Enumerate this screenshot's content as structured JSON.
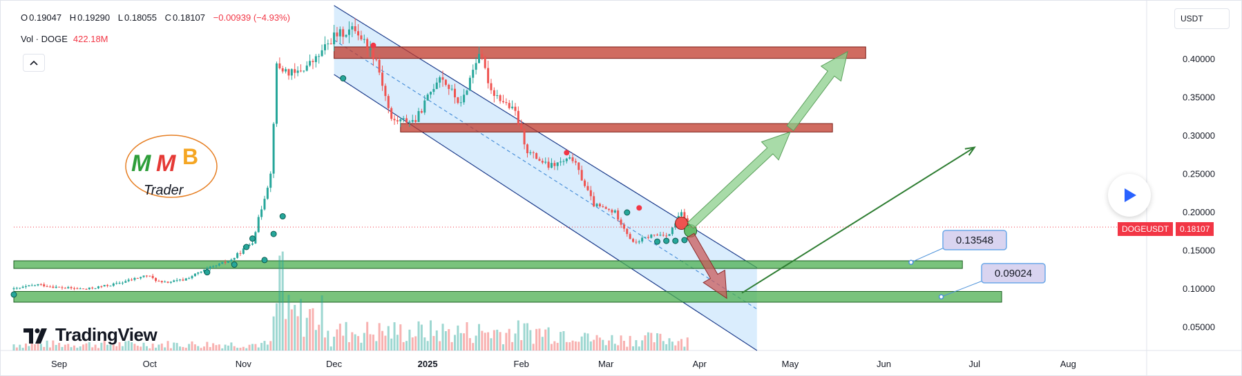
{
  "legend": {
    "open_label": "O",
    "open": "0.19047",
    "high_label": "H",
    "high": "0.19290",
    "low_label": "L",
    "low": "0.18055",
    "close_label": "C",
    "close": "0.18107",
    "change": "−0.00939 (−4.93%)"
  },
  "volume": {
    "label": "Vol · DOGE",
    "value": "422.18M"
  },
  "collapse_icon": "chevron-up-icon",
  "currency": "USDT",
  "symbol_tag": "DOGEUSDT",
  "last_price": "0.18107",
  "watermark": "TradingView",
  "logo": {
    "letters": [
      "M",
      "M",
      "B"
    ],
    "word": "Trader"
  },
  "callouts": [
    "0.13548",
    "0.09024"
  ],
  "colors": {
    "up": "#26a69a",
    "down": "#ef5350",
    "channel": "#bbdefb",
    "resistance": "#c0392b",
    "support": "#4caf50",
    "last_price": "#f23645"
  },
  "chart_data": {
    "type": "candlestick",
    "symbol": "DOGEUSDT",
    "y_ticks": [
      0.05,
      0.1,
      0.15,
      0.2,
      0.25,
      0.3,
      0.35,
      0.4
    ],
    "y_tick_labels": [
      "0.05000",
      "0.10000",
      "0.15000",
      "0.20000",
      "0.25000",
      "0.30000",
      "0.35000",
      "0.40000"
    ],
    "ylim": [
      0.02,
      0.47
    ],
    "x_labels": [
      "Sep",
      "Oct",
      "Nov",
      "Dec",
      "2025",
      "Feb",
      "Mar",
      "Apr",
      "May",
      "Jun",
      "Jul",
      "Aug"
    ],
    "x_label_dates": [
      "2024-09-01",
      "2024-10-01",
      "2024-11-01",
      "2024-12-01",
      "2025-01-01",
      "2025-02-01",
      "2025-03-01",
      "2025-04-01",
      "2025-05-01",
      "2025-06-01",
      "2025-07-01",
      "2025-08-01"
    ],
    "xlim": [
      "2024-08-17",
      "2025-08-27"
    ],
    "price_series": [
      {
        "date": "2024-08-17",
        "close": 0.1
      },
      {
        "date": "2024-08-25",
        "close": 0.106
      },
      {
        "date": "2024-09-01",
        "close": 0.102
      },
      {
        "date": "2024-09-10",
        "close": 0.1
      },
      {
        "date": "2024-09-20",
        "close": 0.107
      },
      {
        "date": "2024-09-30",
        "close": 0.118
      },
      {
        "date": "2024-10-05",
        "close": 0.108
      },
      {
        "date": "2024-10-12",
        "close": 0.112
      },
      {
        "date": "2024-10-20",
        "close": 0.126
      },
      {
        "date": "2024-10-28",
        "close": 0.138
      },
      {
        "date": "2024-11-04",
        "close": 0.162
      },
      {
        "date": "2024-11-10",
        "close": 0.25
      },
      {
        "date": "2024-11-12",
        "close": 0.39
      },
      {
        "date": "2024-11-18",
        "close": 0.38
      },
      {
        "date": "2024-11-25",
        "close": 0.4
      },
      {
        "date": "2024-12-01",
        "close": 0.43
      },
      {
        "date": "2024-12-08",
        "close": 0.44
      },
      {
        "date": "2024-12-15",
        "close": 0.4
      },
      {
        "date": "2024-12-20",
        "close": 0.32
      },
      {
        "date": "2024-12-28",
        "close": 0.32
      },
      {
        "date": "2025-01-05",
        "close": 0.38
      },
      {
        "date": "2025-01-12",
        "close": 0.34
      },
      {
        "date": "2025-01-18",
        "close": 0.41
      },
      {
        "date": "2025-01-22",
        "close": 0.36
      },
      {
        "date": "2025-01-30",
        "close": 0.33
      },
      {
        "date": "2025-02-03",
        "close": 0.28
      },
      {
        "date": "2025-02-10",
        "close": 0.26
      },
      {
        "date": "2025-02-18",
        "close": 0.27
      },
      {
        "date": "2025-02-25",
        "close": 0.21
      },
      {
        "date": "2025-03-04",
        "close": 0.2
      },
      {
        "date": "2025-03-10",
        "close": 0.16
      },
      {
        "date": "2025-03-16",
        "close": 0.17
      },
      {
        "date": "2025-03-22",
        "close": 0.172
      },
      {
        "date": "2025-03-26",
        "close": 0.2
      },
      {
        "date": "2025-03-28",
        "close": 0.181
      }
    ],
    "resistance_zones": [
      {
        "from": 0.401,
        "to": 0.416
      },
      {
        "from": 0.305,
        "to": 0.316
      }
    ],
    "support_zones": [
      {
        "from": 0.127,
        "to": 0.137
      },
      {
        "from": 0.083,
        "to": 0.097
      }
    ],
    "channel": {
      "upper": [
        {
          "date": "2024-12-01",
          "price": 0.47
        },
        {
          "date": "2025-04-20",
          "price": 0.128
        }
      ],
      "lower": [
        {
          "date": "2024-12-01",
          "price": 0.38
        },
        {
          "date": "2025-04-20",
          "price": 0.02
        }
      ],
      "fill_end": "2025-04-20"
    },
    "projection_arrows": [
      {
        "from": {
          "date": "2025-03-29",
          "price": 0.183
        },
        "to": {
          "date": "2025-05-01",
          "price": 0.305
        }
      },
      {
        "from": {
          "date": "2025-05-01",
          "price": 0.31
        },
        "to": {
          "date": "2025-05-20",
          "price": 0.41
        }
      },
      {
        "from": {
          "date": "2025-03-29",
          "price": 0.17
        },
        "to": {
          "date": "2025-04-10",
          "price": 0.088
        }
      },
      {
        "from": {
          "date": "2025-04-15",
          "price": 0.095
        },
        "to": {
          "date": "2025-07-01",
          "price": 0.285
        }
      }
    ],
    "callouts": [
      {
        "label": "0.13548",
        "date": "2025-06-10",
        "price": 0.135
      },
      {
        "label": "0.09024",
        "date": "2025-06-20",
        "price": 0.09
      }
    ]
  }
}
